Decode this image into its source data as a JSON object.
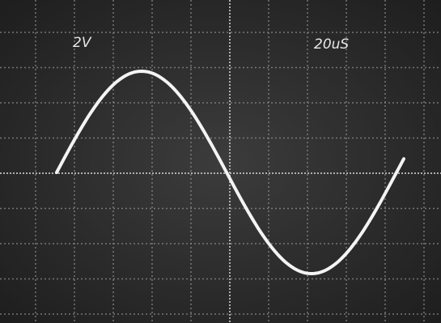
{
  "screen": {
    "volts_per_div": "2V",
    "time_per_div": "20uS"
  }
}
